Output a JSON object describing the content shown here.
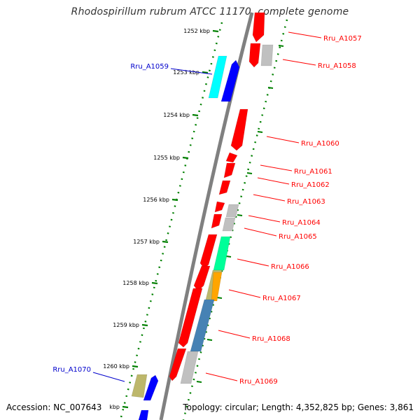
{
  "title": "Rhodospirillum rubrum ATCC 11170, complete genome",
  "footer": {
    "accession": "Accession: NC_007643",
    "topology": "Topology: circular; Length: 4,352,825 bp; Genes: 3,861"
  },
  "colors": {
    "backbone": "#888888",
    "tick": "#008000",
    "label_red": "#ff0000",
    "label_blue": "#0000cc",
    "red": "#ff0000",
    "gray": "#c0c0c0",
    "blue": "#0000ff",
    "cyan": "#00ffff",
    "green_cyan": "#00ff99",
    "olive": "#bdb76b",
    "orange": "#ffa500",
    "steel": "#4682b4"
  },
  "kbp_ticks": [
    {
      "label": "1252 kbp"
    },
    {
      "label": "1253 kbp"
    },
    {
      "label": "1254 kbp"
    },
    {
      "label": "1255 kbp"
    },
    {
      "label": "1256 kbp"
    },
    {
      "label": "1257 kbp"
    },
    {
      "label": "1258 kbp"
    },
    {
      "label": "1259 kbp"
    },
    {
      "label": "1260 kbp"
    },
    {
      "label": "kbp"
    }
  ],
  "gene_labels": [
    {
      "name": "Rru_A1057",
      "color": "red"
    },
    {
      "name": "Rru_A1058",
      "color": "red"
    },
    {
      "name": "Rru_A1059",
      "color": "blue"
    },
    {
      "name": "Rru_A1060",
      "color": "red"
    },
    {
      "name": "Rru_A1061",
      "color": "red"
    },
    {
      "name": "Rru_A1062",
      "color": "red"
    },
    {
      "name": "Rru_A1063",
      "color": "red"
    },
    {
      "name": "Rru_A1064",
      "color": "red"
    },
    {
      "name": "Rru_A1065",
      "color": "red"
    },
    {
      "name": "Rru_A1066",
      "color": "red"
    },
    {
      "name": "Rru_A1067",
      "color": "red"
    },
    {
      "name": "Rru_A1068",
      "color": "red"
    },
    {
      "name": "Rru_A1069",
      "color": "red"
    },
    {
      "name": "Rru_A1070",
      "color": "blue"
    }
  ]
}
